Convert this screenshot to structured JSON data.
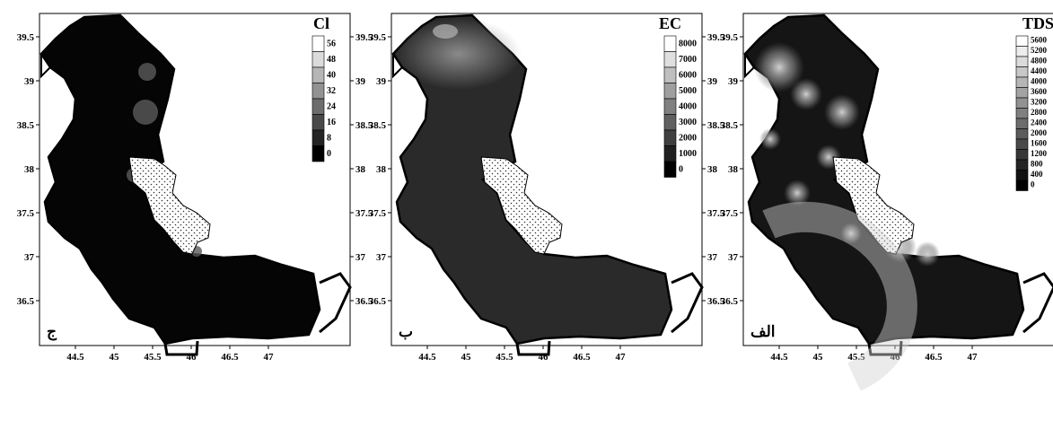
{
  "panels": [
    {
      "id": "cl",
      "variable": "Cl",
      "letter": "ج",
      "x_ticks": [
        "44.5",
        "45",
        "45.5",
        "46",
        "46.5",
        "47"
      ],
      "y_ticks": [
        "39.5",
        "39",
        "38.5",
        "38",
        "37.5",
        "37",
        "36.5"
      ],
      "y_axis_side": "left",
      "colorbar_ticks": [
        "56",
        "48",
        "40",
        "32",
        "24",
        "16",
        "8",
        "0"
      ],
      "field": "mostly-dark"
    },
    {
      "id": "ec",
      "variable": "EC",
      "letter": "ب",
      "x_ticks": [
        "44.5",
        "45",
        "45.5",
        "46",
        "46.5",
        "47"
      ],
      "y_ticks": [
        "39.5",
        "39",
        "38.5",
        "38",
        "37.5",
        "37",
        "36.5"
      ],
      "y_axis_side": "left",
      "colorbar_ticks": [
        "8000",
        "7000",
        "6000",
        "5000",
        "4000",
        "3000",
        "2000",
        "1000",
        "0"
      ],
      "field": "dark-with-light-north"
    },
    {
      "id": "tds",
      "variable": "TDS",
      "letter": "الف",
      "x_ticks": [
        "44.5",
        "45",
        "45.5",
        "46",
        "46.5",
        "47"
      ],
      "y_ticks": [
        "39.5",
        "39",
        "38.5",
        "38",
        "37.5",
        "37",
        "36.5"
      ],
      "y_axis_side": "left",
      "colorbar_ticks": [
        "5600",
        "5200",
        "4800",
        "4400",
        "4000",
        "3600",
        "3200",
        "2800",
        "2400",
        "2000",
        "1600",
        "1200",
        "800",
        "400",
        "0"
      ],
      "field": "variegated"
    }
  ],
  "right_axis_labels": [
    "39.5",
    "39",
    "38.5",
    "38",
    "37.5",
    "37",
    "36.5"
  ],
  "colors": {
    "dark": "#0a0a0a",
    "mid": "#3a3a3a",
    "light": "#d8d8d8",
    "lake": "#ffffff"
  }
}
